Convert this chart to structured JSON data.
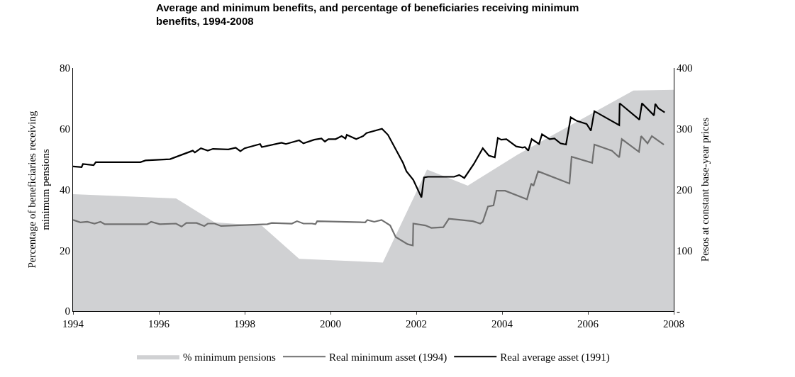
{
  "chart_data": {
    "type": "line",
    "title": "Average and minimum benefits, and percentage of beneficiaries receiving minimum benefits, 1994-2008",
    "ylabel": "Percentage of beneficiaries receiving minimum pensions",
    "y2label": "Pesos at constant base-year prices",
    "xlim": [
      1994,
      2008
    ],
    "xticks": [
      1994,
      1996,
      1998,
      2000,
      2002,
      2004,
      2006,
      2008
    ],
    "ylim": [
      0,
      80
    ],
    "yticks": [
      0,
      20,
      40,
      60,
      80
    ],
    "y2lim": [
      0,
      400
    ],
    "y2ticks": [
      {
        "value": 0,
        "label": "-"
      },
      100,
      200,
      300,
      400
    ],
    "legend": "bottom",
    "marker": "none",
    "line_style": "solid",
    "series": [
      {
        "name": "% minimum pensions",
        "type": "area",
        "axis": "y",
        "color": "#d0d1d3",
        "x": [
          1994.0,
          1996.4,
          1997.3,
          1998.4,
          1999.27,
          2001.22,
          2002.25,
          2003.2,
          2004.36,
          2007.06,
          2008.0
        ],
        "values": [
          38.5,
          37.1,
          29.2,
          28.1,
          17.2,
          16.0,
          46.6,
          41.3,
          51.5,
          72.6,
          72.8
        ]
      },
      {
        "name": "Real minimum asset (1994)",
        "axis": "y2",
        "color": "#707070",
        "x": [
          1994.0,
          1994.17,
          1994.33,
          1994.5,
          1994.64,
          1994.74,
          1995.72,
          1995.82,
          1996.02,
          1996.4,
          1996.53,
          1996.64,
          1996.88,
          1997.06,
          1997.14,
          1997.3,
          1997.45,
          1998.53,
          1998.63,
          1999.1,
          1999.22,
          1999.37,
          1999.57,
          1999.65,
          1999.69,
          2000.81,
          2000.86,
          2001.02,
          2001.19,
          2001.39,
          2001.52,
          2001.8,
          2001.92,
          2001.93,
          2002.21,
          2002.35,
          2002.63,
          2002.76,
          2003.32,
          2003.49,
          2003.55,
          2003.67,
          2003.8,
          2003.87,
          2004.07,
          2004.58,
          2004.68,
          2004.73,
          2004.84,
          2005.57,
          2005.62,
          2006.1,
          2006.15,
          2006.56,
          2006.73,
          2006.79,
          2007.19,
          2007.24,
          2007.39,
          2007.49,
          2007.77
        ],
        "values": [
          150,
          146,
          147,
          144,
          147,
          143,
          143,
          147,
          143,
          144,
          139,
          145,
          145,
          140,
          144,
          144,
          140,
          143,
          145,
          144,
          148,
          144,
          144,
          143,
          148,
          146,
          150,
          147,
          150,
          141,
          122,
          110,
          108,
          144,
          141,
          137,
          138,
          152,
          148,
          144,
          147,
          172,
          174,
          198,
          198,
          184,
          210,
          206,
          230,
          210,
          254,
          244,
          274,
          264,
          253,
          283,
          262,
          288,
          276,
          288,
          274
        ]
      },
      {
        "name": "Real average asset (1991)",
        "axis": "y2",
        "color": "#000000",
        "x": [
          1994.0,
          1994.2,
          1994.23,
          1994.48,
          1994.53,
          1995.57,
          1995.69,
          1996.26,
          1996.79,
          1996.84,
          1996.98,
          1997.14,
          1997.26,
          1997.62,
          1997.79,
          1997.9,
          1998.0,
          1998.36,
          1998.4,
          1998.86,
          1998.96,
          1999.27,
          1999.37,
          1999.62,
          1999.79,
          1999.87,
          1999.95,
          2000.12,
          2000.26,
          2000.35,
          2000.38,
          2000.6,
          2000.76,
          2000.84,
          2001.2,
          2001.34,
          2001.69,
          2001.77,
          2001.93,
          2002.12,
          2002.18,
          2002.27,
          2002.88,
          2003.0,
          2003.12,
          2003.34,
          2003.55,
          2003.69,
          2003.83,
          2003.9,
          2003.98,
          2004.1,
          2004.33,
          2004.48,
          2004.53,
          2004.61,
          2004.69,
          2004.86,
          2004.93,
          2005.11,
          2005.22,
          2005.36,
          2005.49,
          2005.6,
          2005.74,
          2005.97,
          2006.07,
          2006.15,
          2006.73,
          2006.74,
          2007.2,
          2007.26,
          2007.54,
          2007.57,
          2007.64,
          2007.79
        ],
        "values": [
          238,
          237,
          242,
          240,
          245,
          245,
          248,
          250,
          264,
          261,
          268,
          264,
          267,
          266,
          269,
          263,
          268,
          275,
          270,
          277,
          275,
          281,
          276,
          282,
          284,
          279,
          283,
          283,
          288,
          284,
          290,
          283,
          288,
          293,
          300,
          290,
          244,
          230,
          216,
          187,
          220,
          221,
          221,
          224,
          219,
          242,
          268,
          256,
          253,
          285,
          282,
          283,
          271,
          269,
          270,
          264,
          283,
          275,
          291,
          283,
          284,
          276,
          274,
          319,
          313,
          308,
          297,
          329,
          306,
          342,
          315,
          342,
          322,
          341,
          334,
          327
        ]
      }
    ]
  }
}
